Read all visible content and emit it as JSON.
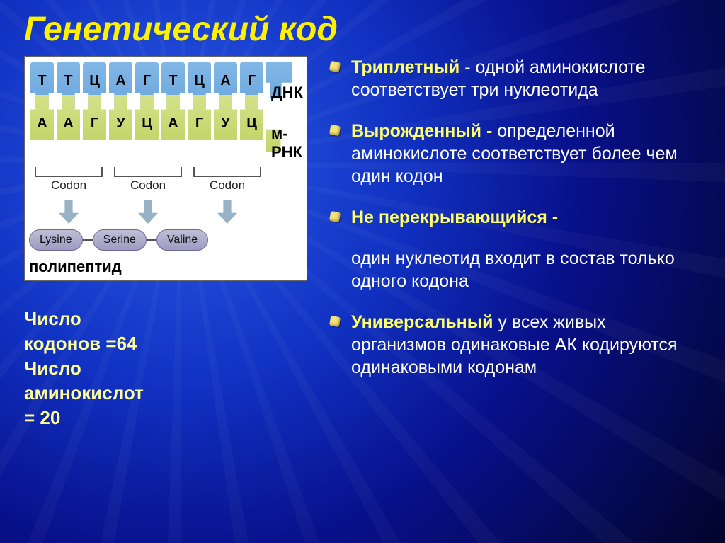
{
  "colors": {
    "title": "#fff000",
    "term1": "#ffff66",
    "term2": "#ffff66",
    "term3": "#ffff66",
    "term4": "#ffff66",
    "body_text": "#ffffff",
    "left_text": "#ffff99",
    "dna_fill": "#6aa6dd",
    "rna_fill": "#c3d56a",
    "aa_pill": "#9d9bc2",
    "arrow": "#97b1c6"
  },
  "title": "Генетический код",
  "diagram": {
    "dna_label": "ДНК",
    "rna_label": "м-РНК",
    "dna_seq": [
      "Т",
      "Т",
      "Ц",
      "А",
      "Г",
      "Т",
      "Ц",
      "А",
      "Г"
    ],
    "rna_seq": [
      "А",
      "А",
      "Г",
      "У",
      "Ц",
      "А",
      "Г",
      "У",
      "Ц"
    ],
    "codon_label": "Codon",
    "codon_count": 3,
    "amino_acids": [
      "Lysine",
      "Serine",
      "Valine"
    ],
    "polypeptide_label": "полипептид"
  },
  "left_block": {
    "line1": "Число",
    "line2": "кодонов =64",
    "line3": "Число",
    "line4": "аминокислот",
    "line5": "= 20"
  },
  "bullets": [
    {
      "term": "Триплетный",
      "sep": " -   ",
      "text": "одной аминокислоте соответствует три нуклеотида",
      "has_dot": true
    },
    {
      "term": "Вырожденный -",
      "sep": " ",
      "text": "определенной аминокислоте соответствует более чем один кодон",
      "has_dot": true
    },
    {
      "term": "Не перекрывающийся -",
      "sep": "",
      "text": "",
      "has_dot": true
    },
    {
      "term": "",
      "sep": "",
      "text": "один нуклеотид входит в состав только одного кодона",
      "has_dot": false
    },
    {
      "term": "Универсальный",
      "sep": " ",
      "text": "у всех живых организмов одинаковые АК кодируются одинаковыми кодонам",
      "has_dot": true
    }
  ]
}
